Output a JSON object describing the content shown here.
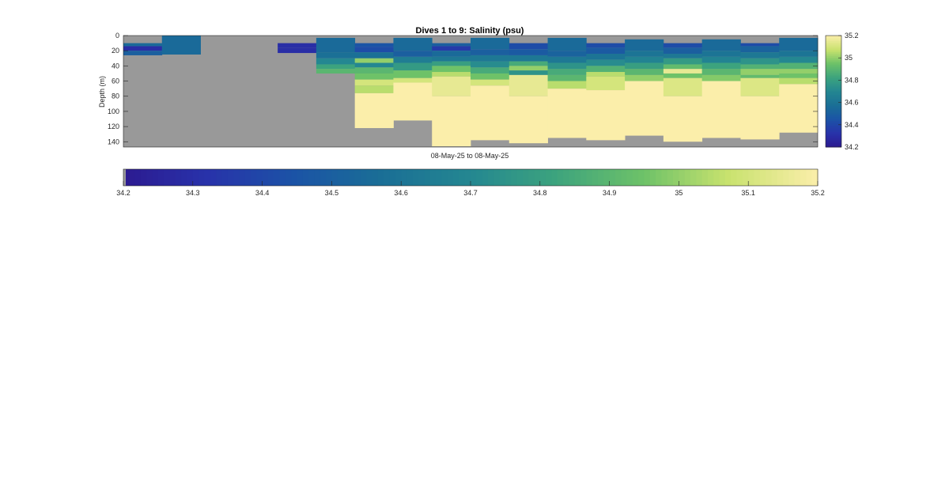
{
  "chart_data": {
    "type": "heatmap",
    "title": "Dives 1 to 9: Salinity (psu)",
    "xlabel": "08-May-25 to 08-May-25",
    "ylabel": "Depth (m)",
    "ylim": [
      0,
      147
    ],
    "y_ticks": [
      0,
      20,
      40,
      60,
      80,
      100,
      120,
      140
    ],
    "no_data_color": "#999999",
    "colormap": "parula",
    "color_range": [
      34.2,
      35.2
    ],
    "colorbar_right_ticks": [
      "35.2",
      "35",
      "34.8",
      "34.6",
      "34.4",
      "34.2"
    ],
    "colorbar_bottom_ticks": [
      "34.2",
      "34.3",
      "34.4",
      "34.5",
      "34.6",
      "34.7",
      "34.8",
      "34.9",
      "35",
      "35.1",
      "35.2"
    ],
    "profiles": [
      {
        "top": 10,
        "bottom": 26,
        "layers": [
          [
            10,
            14,
            34.55
          ],
          [
            14,
            20,
            34.3
          ],
          [
            20,
            26,
            34.5
          ]
        ]
      },
      {
        "top": 0,
        "bottom": 25,
        "layers": [
          [
            0,
            25,
            34.55
          ]
        ]
      },
      {
        "top": null,
        "bottom": null,
        "layers": []
      },
      {
        "top": null,
        "bottom": null,
        "layers": []
      },
      {
        "top": 10,
        "bottom": 23,
        "layers": [
          [
            10,
            16,
            34.3
          ],
          [
            16,
            23,
            34.3
          ]
        ]
      },
      {
        "top": 3,
        "bottom": 50,
        "layers": [
          [
            3,
            22,
            34.55
          ],
          [
            22,
            30,
            34.58
          ],
          [
            30,
            38,
            34.7
          ],
          [
            38,
            44,
            34.82
          ],
          [
            44,
            50,
            34.9
          ]
        ]
      },
      {
        "top": 10,
        "bottom": 122,
        "layers": [
          [
            10,
            15,
            34.45
          ],
          [
            15,
            22,
            34.42
          ],
          [
            22,
            30,
            34.58
          ],
          [
            30,
            36,
            35.0
          ],
          [
            36,
            42,
            34.7
          ],
          [
            42,
            50,
            34.9
          ],
          [
            50,
            58,
            34.95
          ],
          [
            58,
            66,
            35.1
          ],
          [
            66,
            76,
            35.05
          ],
          [
            76,
            122,
            35.2
          ]
        ]
      },
      {
        "top": 3,
        "bottom": 112,
        "layers": [
          [
            3,
            20,
            34.55
          ],
          [
            20,
            28,
            34.5
          ],
          [
            28,
            36,
            34.65
          ],
          [
            36,
            46,
            34.78
          ],
          [
            46,
            56,
            34.95
          ],
          [
            56,
            62,
            35.1
          ],
          [
            62,
            112,
            35.2
          ]
        ]
      },
      {
        "top": 10,
        "bottom": 146,
        "layers": [
          [
            10,
            14,
            34.5
          ],
          [
            14,
            20,
            34.35
          ],
          [
            20,
            28,
            34.55
          ],
          [
            28,
            34,
            34.62
          ],
          [
            34,
            40,
            34.8
          ],
          [
            40,
            48,
            34.95
          ],
          [
            48,
            54,
            35.05
          ],
          [
            54,
            80,
            35.15
          ],
          [
            80,
            146,
            35.2
          ]
        ]
      },
      {
        "top": 3,
        "bottom": 138,
        "layers": [
          [
            3,
            18,
            34.55
          ],
          [
            18,
            26,
            34.5
          ],
          [
            26,
            34,
            34.62
          ],
          [
            34,
            42,
            34.72
          ],
          [
            42,
            50,
            34.85
          ],
          [
            50,
            58,
            34.95
          ],
          [
            58,
            66,
            35.1
          ],
          [
            66,
            138,
            35.2
          ]
        ]
      },
      {
        "top": 10,
        "bottom": 142,
        "layers": [
          [
            10,
            18,
            34.42
          ],
          [
            18,
            26,
            34.48
          ],
          [
            26,
            34,
            34.62
          ],
          [
            34,
            40,
            34.85
          ],
          [
            40,
            46,
            35.0
          ],
          [
            46,
            52,
            34.75
          ],
          [
            52,
            80,
            35.15
          ],
          [
            80,
            142,
            35.2
          ]
        ]
      },
      {
        "top": 3,
        "bottom": 135,
        "layers": [
          [
            3,
            20,
            34.55
          ],
          [
            20,
            28,
            34.52
          ],
          [
            28,
            36,
            34.62
          ],
          [
            36,
            44,
            34.75
          ],
          [
            44,
            52,
            34.85
          ],
          [
            52,
            60,
            34.9
          ],
          [
            60,
            70,
            35.05
          ],
          [
            70,
            135,
            35.2
          ]
        ]
      },
      {
        "top": 10,
        "bottom": 138,
        "layers": [
          [
            10,
            16,
            34.42
          ],
          [
            16,
            24,
            34.48
          ],
          [
            24,
            32,
            34.6
          ],
          [
            32,
            40,
            34.72
          ],
          [
            40,
            48,
            34.88
          ],
          [
            48,
            54,
            35.05
          ],
          [
            54,
            72,
            35.1
          ],
          [
            72,
            138,
            35.2
          ]
        ]
      },
      {
        "top": 5,
        "bottom": 132,
        "layers": [
          [
            5,
            20,
            34.55
          ],
          [
            20,
            28,
            34.6
          ],
          [
            28,
            36,
            34.68
          ],
          [
            36,
            44,
            34.8
          ],
          [
            44,
            52,
            34.9
          ],
          [
            52,
            60,
            35.0
          ],
          [
            60,
            132,
            35.2
          ]
        ]
      },
      {
        "top": 10,
        "bottom": 140,
        "layers": [
          [
            10,
            16,
            34.42
          ],
          [
            16,
            24,
            34.5
          ],
          [
            24,
            30,
            34.62
          ],
          [
            30,
            38,
            34.78
          ],
          [
            38,
            44,
            34.92
          ],
          [
            44,
            50,
            35.15
          ],
          [
            50,
            56,
            34.95
          ],
          [
            56,
            80,
            35.12
          ],
          [
            80,
            140,
            35.2
          ]
        ]
      },
      {
        "top": 5,
        "bottom": 135,
        "layers": [
          [
            5,
            20,
            34.55
          ],
          [
            20,
            28,
            34.6
          ],
          [
            28,
            36,
            34.68
          ],
          [
            36,
            44,
            34.82
          ],
          [
            44,
            52,
            34.9
          ],
          [
            52,
            60,
            34.98
          ],
          [
            60,
            135,
            35.2
          ]
        ]
      },
      {
        "top": 10,
        "bottom": 137,
        "layers": [
          [
            10,
            14,
            34.42
          ],
          [
            14,
            22,
            34.52
          ],
          [
            22,
            30,
            34.62
          ],
          [
            30,
            38,
            34.75
          ],
          [
            38,
            44,
            34.88
          ],
          [
            44,
            52,
            35.0
          ],
          [
            52,
            56,
            34.92
          ],
          [
            56,
            80,
            35.12
          ],
          [
            80,
            137,
            35.2
          ]
        ]
      },
      {
        "top": 3,
        "bottom": 128,
        "layers": [
          [
            3,
            20,
            34.55
          ],
          [
            20,
            28,
            34.6
          ],
          [
            28,
            36,
            34.7
          ],
          [
            36,
            44,
            34.88
          ],
          [
            44,
            50,
            35.0
          ],
          [
            50,
            56,
            34.95
          ],
          [
            56,
            64,
            35.05
          ],
          [
            64,
            128,
            35.2
          ]
        ]
      }
    ]
  }
}
